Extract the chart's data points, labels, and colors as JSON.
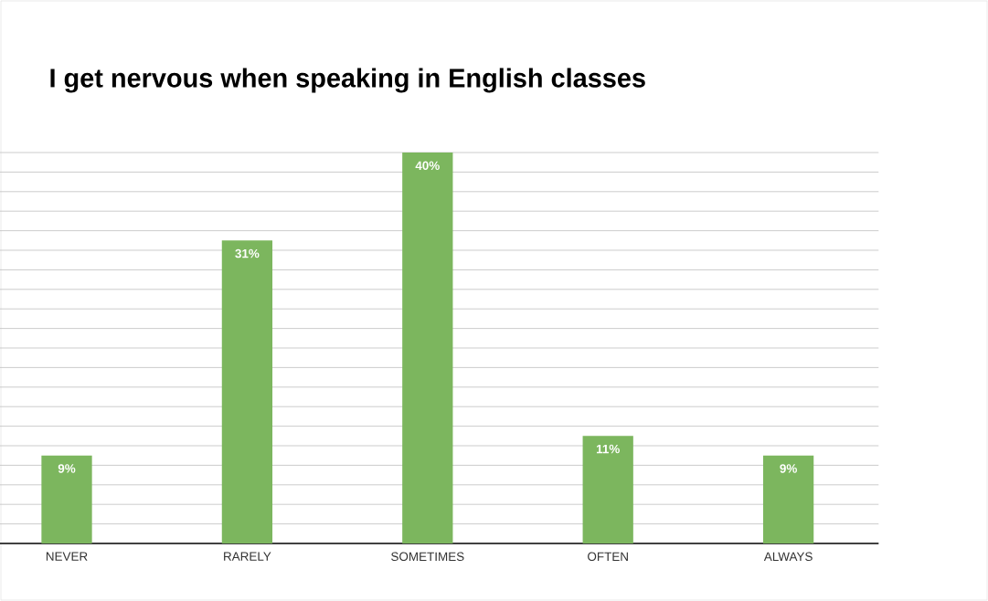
{
  "chart_data": {
    "type": "bar",
    "title": "I get nervous when speaking in English classes",
    "categories": [
      "NEVER",
      "RARELY",
      "SOMETIMES",
      "OFTEN",
      "ALWAYS"
    ],
    "values": [
      9,
      31,
      40,
      11,
      9
    ],
    "value_labels": [
      "9%",
      "31%",
      "40%",
      "11%",
      "9%"
    ],
    "color": "#7cb65e",
    "grid": "y",
    "tick_labels": "x"
  }
}
